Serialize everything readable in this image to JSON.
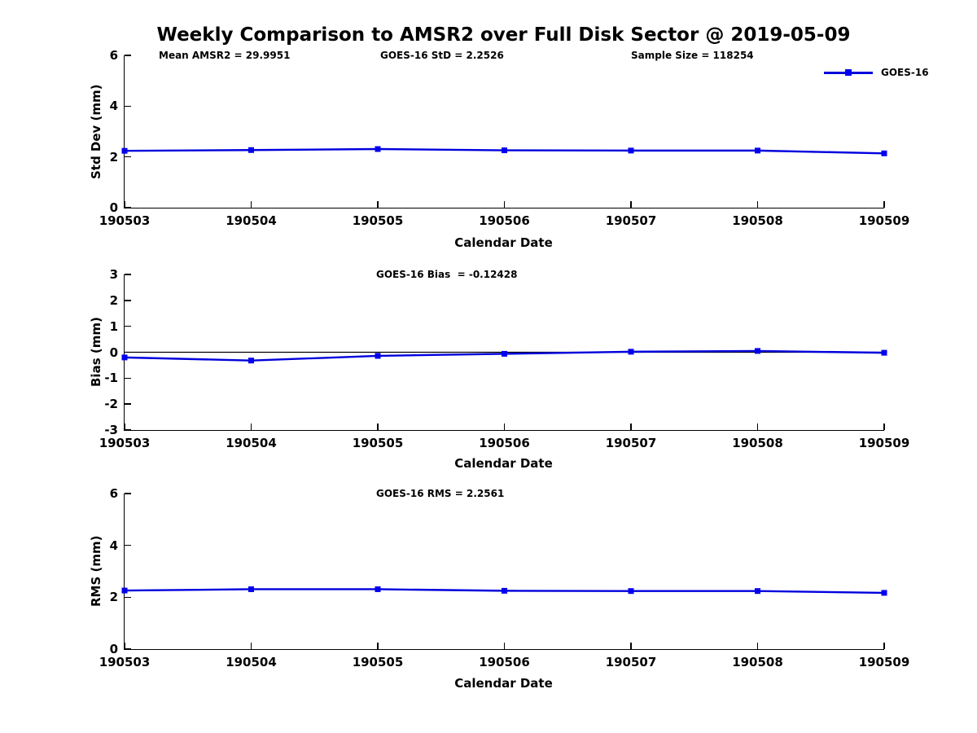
{
  "title": "Weekly Comparison to AMSR2 over Full Disk Sector @ 2019-05-09",
  "chart_data": [
    {
      "type": "line",
      "annotations": [
        "Mean AMSR2 = 29.9951",
        "GOES-16 StD = 2.2526",
        "Sample Size = 118254"
      ],
      "categories": [
        "190503",
        "190504",
        "190505",
        "190506",
        "190507",
        "190508",
        "190509"
      ],
      "series": [
        {
          "name": "GOES-16",
          "values": [
            2.24,
            2.27,
            2.31,
            2.26,
            2.25,
            2.25,
            2.14
          ]
        }
      ],
      "xlabel": "Calendar Date",
      "ylabel": "Std Dev (mm)",
      "ylim": [
        0,
        6
      ],
      "yticks": [
        0,
        2,
        4,
        6
      ],
      "grid": false,
      "zero_line": false,
      "legend_position": "top-right",
      "line_color": "#0000dd",
      "marker": "square",
      "marker_color": "#0000ee"
    },
    {
      "type": "line",
      "annotations": [
        "GOES-16 Bias  = -0.12428"
      ],
      "categories": [
        "190503",
        "190504",
        "190505",
        "190506",
        "190507",
        "190508",
        "190509"
      ],
      "series": [
        {
          "name": "GOES-16",
          "values": [
            -0.2,
            -0.32,
            -0.14,
            -0.06,
            0.02,
            0.05,
            -0.02
          ]
        }
      ],
      "xlabel": "Calendar Date",
      "ylabel": "Bias (mm)",
      "ylim": [
        -3,
        3
      ],
      "yticks": [
        -3,
        -2,
        -1,
        0,
        1,
        2,
        3
      ],
      "grid": false,
      "zero_line": true,
      "legend_position": "none",
      "line_color": "#0000dd",
      "marker": "square",
      "marker_color": "#0000ee"
    },
    {
      "type": "line",
      "annotations": [
        "GOES-16 RMS = 2.2561"
      ],
      "categories": [
        "190503",
        "190504",
        "190505",
        "190506",
        "190507",
        "190508",
        "190509"
      ],
      "series": [
        {
          "name": "GOES-16",
          "values": [
            2.26,
            2.31,
            2.31,
            2.25,
            2.24,
            2.24,
            2.17
          ]
        }
      ],
      "xlabel": "Calendar Date",
      "ylabel": "RMS (mm)",
      "ylim": [
        0,
        6
      ],
      "yticks": [
        0,
        2,
        4,
        6
      ],
      "grid": false,
      "zero_line": false,
      "legend_position": "none",
      "line_color": "#0000dd",
      "marker": "square",
      "marker_color": "#0000ee"
    }
  ]
}
